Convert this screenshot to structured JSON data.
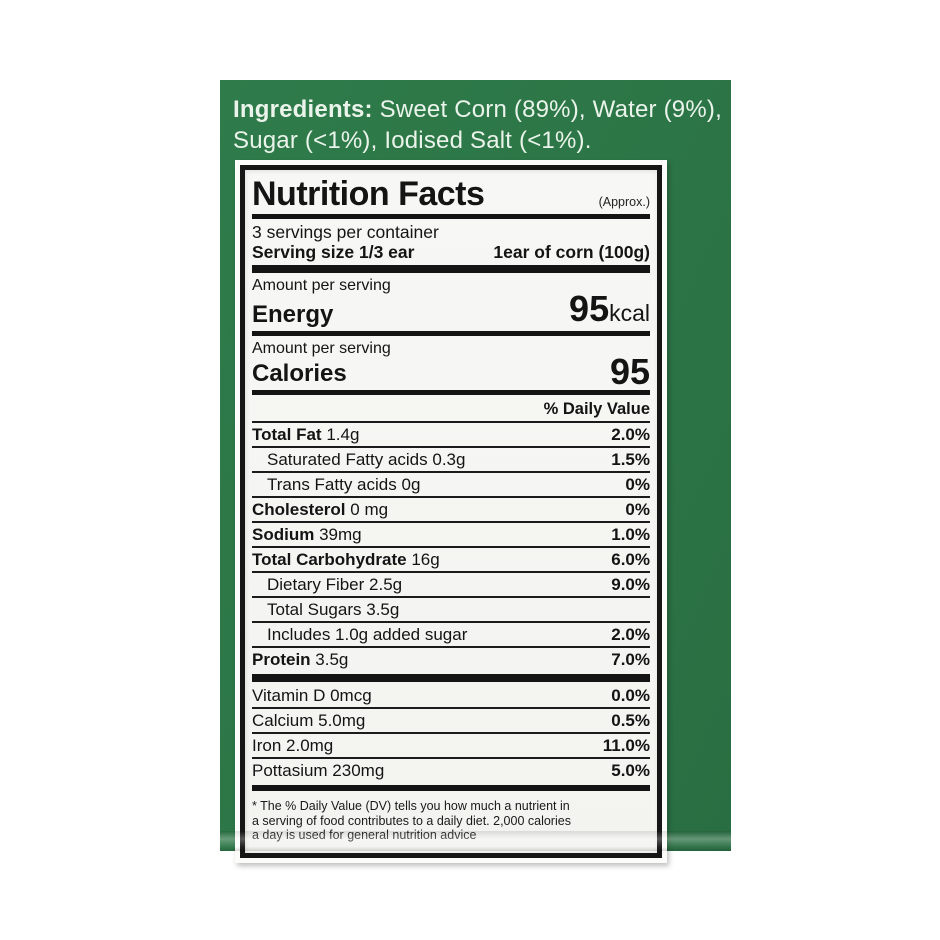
{
  "colors": {
    "panel_green": "#2c7546",
    "panel_green_highlight": "#4f9c6a",
    "label_background": "#f5f5f2",
    "label_frame_white": "#fcfcfb",
    "label_border_black": "#161616",
    "ingredients_text": "#eaf4eb"
  },
  "ingredients": {
    "label": "Ingredients:",
    "line1_rest": " Sweet Corn (89%), Water (9%),",
    "line2": "Sugar (<1%), Iodised Salt (<1%)."
  },
  "label": {
    "title": "Nutrition Facts",
    "approx": "(Approx.)",
    "servings_per_container": "3 servings per container",
    "serving_size_label": "Serving size 1/3 ear",
    "serving_size_value": "1ear of corn (100g)",
    "amount_per_serving": "Amount per serving",
    "energy": {
      "name": "Energy",
      "value": "95",
      "unit": "kcal"
    },
    "calories": {
      "name": "Calories",
      "value": "95"
    },
    "daily_value_header": "% Daily Value",
    "rows": [
      {
        "name": "Total Fat",
        "amount": "1.4g",
        "dv": "2.0%"
      },
      {
        "name": "Saturated Fatty acids",
        "amount": "0.3g",
        "dv": "1.5%"
      },
      {
        "name": "Trans Fatty acids",
        "amount": "0g",
        "dv": "0%"
      },
      {
        "name": "Cholesterol",
        "amount": "0 mg",
        "dv": "0%"
      },
      {
        "name": "Sodium",
        "amount": "39mg",
        "dv": "1.0%"
      },
      {
        "name": "Total Carbohydrate",
        "amount": "16g",
        "dv": "6.0%"
      },
      {
        "name": "Dietary Fiber",
        "amount": "2.5g",
        "dv": "9.0%"
      },
      {
        "name": "Total Sugars",
        "amount": "3.5g",
        "dv": ""
      },
      {
        "name": "Includes 1.0g added sugar",
        "amount": "",
        "dv": "2.0%"
      },
      {
        "name": "Protein",
        "amount": "3.5g",
        "dv": "7.0%"
      }
    ],
    "micro_rows": [
      {
        "name": "Vitamin D 0mcg",
        "dv": "0.0%"
      },
      {
        "name": "Calcium 5.0mg",
        "dv": "0.5%"
      },
      {
        "name": "Iron 2.0mg",
        "dv": "11.0%"
      },
      {
        "name": "Pottasium 230mg",
        "dv": "5.0%"
      }
    ],
    "footnote_lines": [
      "* The % Daily Value (DV) tells you how much a nutrient in",
      "a serving of food contributes to a daily diet. 2,000 calories",
      "a day is used for general nutrition advice"
    ]
  }
}
